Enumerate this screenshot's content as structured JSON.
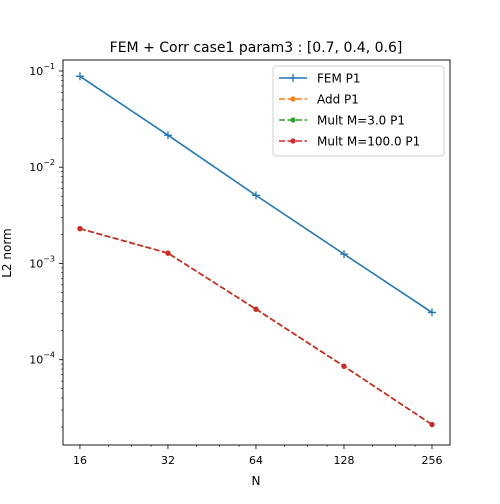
{
  "chart_data": {
    "type": "line",
    "title": "FEM + Corr case1 param3 : [0.7, 0.4, 0.6]",
    "xlabel": "N",
    "ylabel": "L2 norm",
    "x_scale": "log2",
    "y_scale": "log10",
    "xlim": [
      14,
      295
    ],
    "ylim": [
      1.3e-05,
      0.13
    ],
    "grid": false,
    "legend_placement": "top-right",
    "x": [
      16,
      32,
      64,
      128,
      256
    ],
    "x_ticks": [
      {
        "value": 16,
        "label": "16"
      },
      {
        "value": 32,
        "label": "32"
      },
      {
        "value": 64,
        "label": "64"
      },
      {
        "value": 128,
        "label": "128"
      },
      {
        "value": 256,
        "label": "256"
      }
    ],
    "y_ticks": [
      {
        "value": 0.1,
        "base": "10",
        "exp": "−1"
      },
      {
        "value": 0.01,
        "base": "10",
        "exp": "−2"
      },
      {
        "value": 0.001,
        "base": "10",
        "exp": "−3"
      },
      {
        "value": 0.0001,
        "base": "10",
        "exp": "−4"
      }
    ],
    "series": [
      {
        "name": "FEM P1",
        "color": "#1f77b4",
        "dash": "solid",
        "marker": "plus",
        "values": [
          0.088,
          0.0215,
          0.0051,
          0.00125,
          0.00031
        ]
      },
      {
        "name": "Add P1",
        "color": "#ff7f0e",
        "dash": "dashed",
        "marker": "dot",
        "values": [
          0.0023,
          0.00128,
          0.000335,
          8.55e-05,
          2.12e-05
        ]
      },
      {
        "name": "Mult M=3.0 P1",
        "color": "#2ca02c",
        "dash": "dashed",
        "marker": "dot",
        "values": [
          0.0023,
          0.00128,
          0.000335,
          8.55e-05,
          2.12e-05
        ]
      },
      {
        "name": "Mult M=100.0 P1",
        "color": "#d62728",
        "dash": "dashed",
        "marker": "dot",
        "values": [
          0.0023,
          0.00128,
          0.000335,
          8.55e-05,
          2.12e-05
        ]
      }
    ]
  }
}
